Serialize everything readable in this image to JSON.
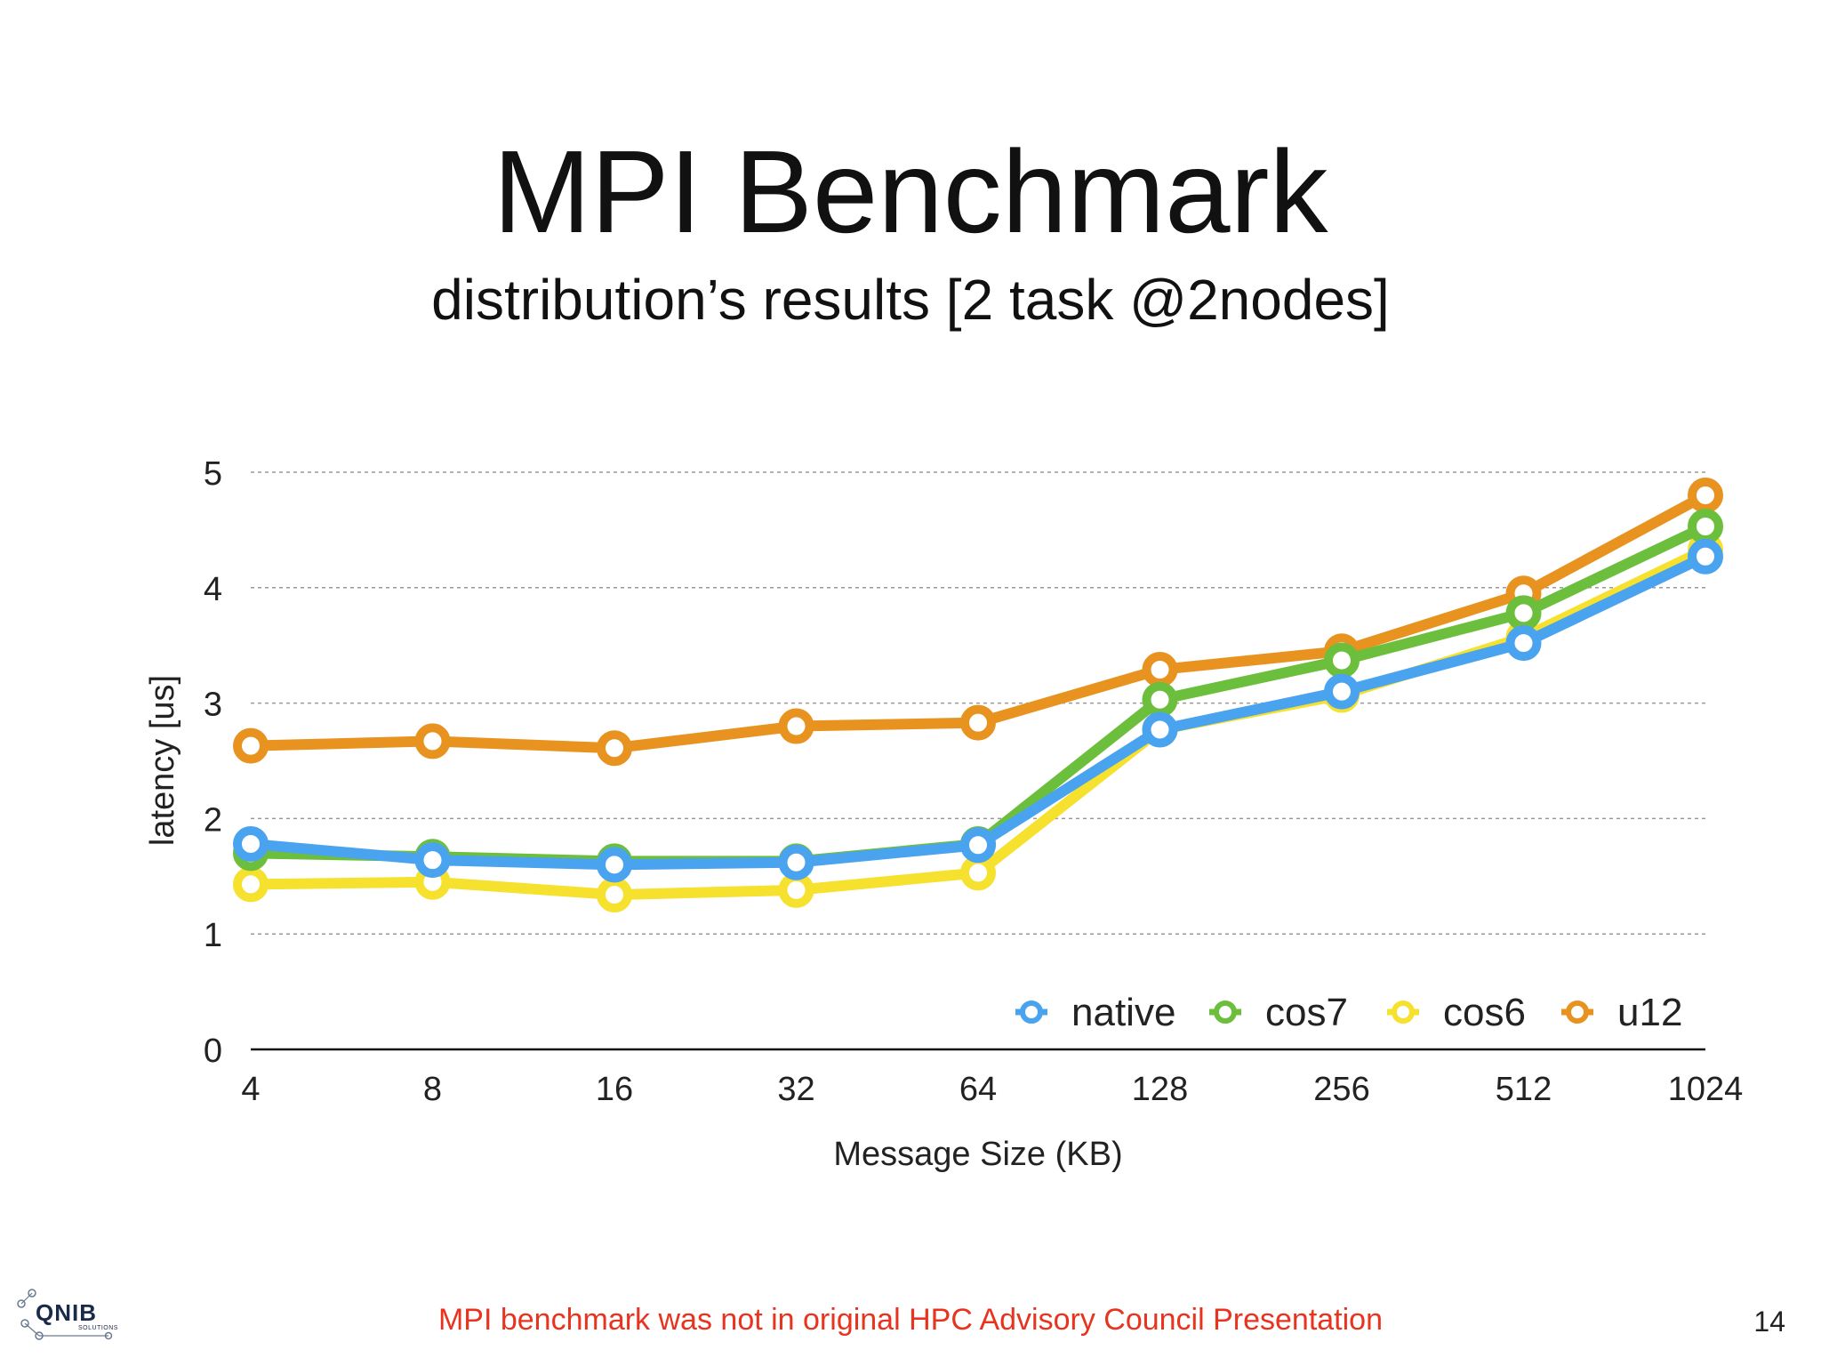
{
  "title": "MPI Benchmark",
  "subtitle": "distribution’s results [2 task @2nodes]",
  "footer_note": "MPI benchmark was not in original HPC Advisory Council Presentation",
  "page_number": "14",
  "logo": {
    "text": "QNIB",
    "subtext": "SOLUTIONS"
  },
  "chart_data": {
    "type": "line",
    "xlabel": "Message Size (KB)",
    "ylabel": "latency [us]",
    "categories": [
      "4",
      "8",
      "16",
      "32",
      "64",
      "128",
      "256",
      "512",
      "1024"
    ],
    "ylim": [
      0,
      5
    ],
    "yticks": [
      "0",
      "1",
      "2",
      "3",
      "4",
      "5"
    ],
    "grid": true,
    "legend_position": "bottom-right",
    "series": [
      {
        "name": "u12",
        "color": "#e8931f",
        "values": [
          2.63,
          2.67,
          2.61,
          2.8,
          2.83,
          3.29,
          3.45,
          3.95,
          4.8
        ]
      },
      {
        "name": "cos6",
        "color": "#f5e12e",
        "values": [
          1.43,
          1.45,
          1.34,
          1.38,
          1.53,
          2.77,
          3.07,
          3.57,
          4.33
        ]
      },
      {
        "name": "cos7",
        "color": "#6cbf3c",
        "values": [
          1.7,
          1.67,
          1.63,
          1.63,
          1.78,
          3.03,
          3.37,
          3.78,
          4.53
        ]
      },
      {
        "name": "native",
        "color": "#4aa3ef",
        "values": [
          1.78,
          1.64,
          1.6,
          1.62,
          1.77,
          2.77,
          3.1,
          3.52,
          4.27
        ]
      }
    ],
    "legend_order": [
      "native",
      "cos7",
      "cos6",
      "u12"
    ]
  }
}
